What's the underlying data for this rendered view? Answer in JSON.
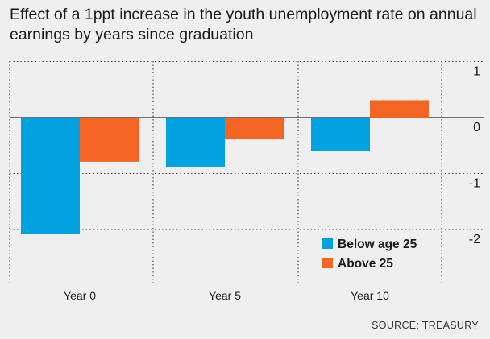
{
  "chart_data": {
    "type": "bar",
    "title": "Effect of a 1ppt increase in the youth unemployment rate on annual earnings by years since graduation",
    "categories": [
      "Year 0",
      "Year 5",
      "Year 10"
    ],
    "series": [
      {
        "name": "Below age 25",
        "values": [
          -2.08,
          -0.88,
          -0.59
        ],
        "color": "#00a3e0"
      },
      {
        "name": "Above 25",
        "values": [
          -0.79,
          -0.39,
          0.31
        ],
        "color": "#f26522"
      }
    ],
    "yticks": [
      1,
      0,
      -1,
      -2
    ],
    "ylim": [
      -2.9,
      1.0
    ],
    "grid": true,
    "legend": "bottom-right",
    "source": "SOURCE: TREASURY"
  }
}
